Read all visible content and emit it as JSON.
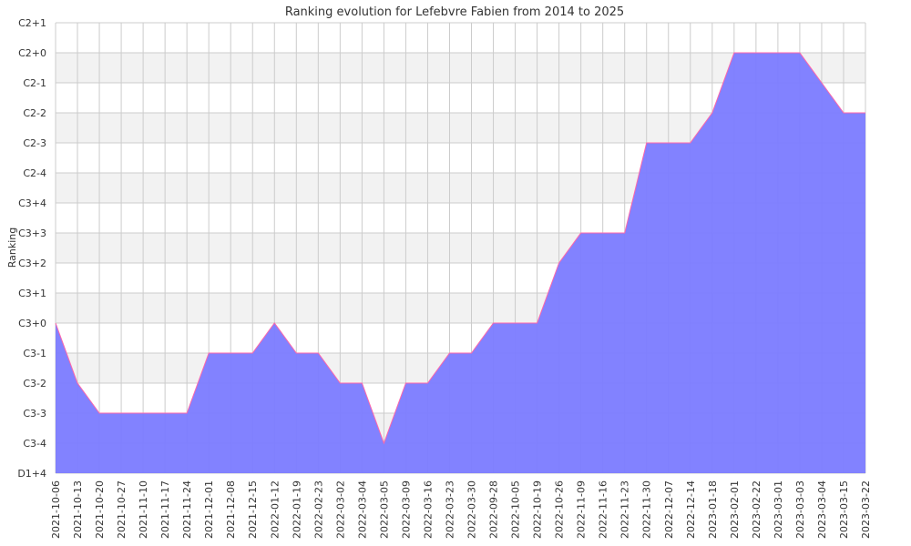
{
  "chart_data": {
    "type": "area",
    "title": "Ranking evolution for Lefebvre Fabien from 2014 to 2025",
    "xlabel": "",
    "ylabel": "Ranking",
    "y_ticks": [
      "D1+4",
      "C3-4",
      "C3-3",
      "C3-2",
      "C3-1",
      "C3+0",
      "C3+1",
      "C3+2",
      "C3+3",
      "C3+4",
      "C2-4",
      "C2-3",
      "C2-2",
      "C2-1",
      "C2+0",
      "C2+1"
    ],
    "ylim": [
      "D1+4",
      "C2+1"
    ],
    "grid": true,
    "legend": "none",
    "colors": {
      "fill": "#7b7bff",
      "line": "#ff66aa",
      "band": "#f2f2f2",
      "grid": "#cccccc"
    },
    "x": [
      "2021-10-06",
      "2021-10-13",
      "2021-10-20",
      "2021-10-27",
      "2021-11-10",
      "2021-11-17",
      "2021-11-24",
      "2021-12-01",
      "2021-12-08",
      "2021-12-15",
      "2022-01-12",
      "2022-01-19",
      "2022-02-23",
      "2022-03-02",
      "2022-03-04",
      "2022-03-05",
      "2022-03-09",
      "2022-03-16",
      "2022-03-23",
      "2022-03-30",
      "2022-09-28",
      "2022-10-05",
      "2022-10-19",
      "2022-10-26",
      "2022-11-09",
      "2022-11-16",
      "2022-11-23",
      "2022-11-30",
      "2022-12-07",
      "2022-12-14",
      "2023-01-18",
      "2023-02-01",
      "2023-02-22",
      "2023-03-01",
      "2023-03-03",
      "2023-03-04",
      "2023-03-15",
      "2023-03-22"
    ],
    "values": [
      "C3+0",
      "C3-2",
      "C3-3",
      "C3-3",
      "C3-3",
      "C3-3",
      "C3-3",
      "C3-1",
      "C3-1",
      "C3-1",
      "C3+0",
      "C3-1",
      "C3-1",
      "C3-2",
      "C3-2",
      "C3-4",
      "C3-2",
      "C3-2",
      "C3-1",
      "C3-1",
      "C3+0",
      "C3+0",
      "C3+0",
      "C3+2",
      "C3+3",
      "C3+3",
      "C3+3",
      "C2-3",
      "C2-3",
      "C2-3",
      "C2-2",
      "C2+0",
      "C2+0",
      "C2+0",
      "C2+0",
      "C2-1",
      "C2-2",
      "C2-2"
    ]
  }
}
